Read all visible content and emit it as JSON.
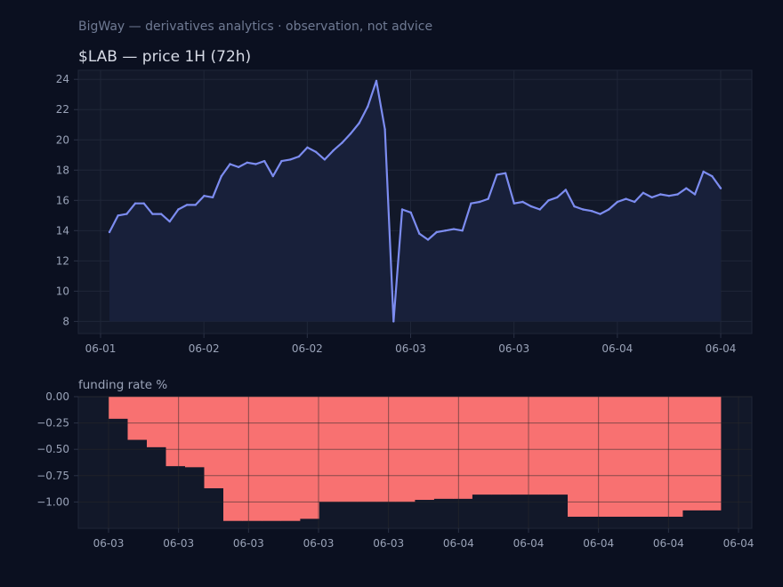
{
  "header": {
    "subtitle": "BigWay — derivatives analytics · observation, not advice"
  },
  "colors": {
    "page_background": "#0b1020",
    "plot_background": "#121829",
    "price_line": "#7c8cf0",
    "price_fill": "#18203a",
    "funding_bar": "#f87171",
    "grid": "#1f2638",
    "text": "#9aa3b8"
  },
  "chart_data": [
    {
      "type": "area",
      "title": "$LAB — price 1H (72h)",
      "xlabel": "",
      "ylabel": "",
      "ylim": [
        7.2,
        24.6
      ],
      "yticks": [
        8,
        10,
        12,
        14,
        16,
        18,
        20,
        22,
        24
      ],
      "xticks": [
        "06-01",
        "06-02",
        "06-02",
        "06-03",
        "06-03",
        "06-04",
        "06-04"
      ],
      "grid": true,
      "series": [
        {
          "values": [
            13.9,
            15.0,
            15.1,
            15.8,
            15.8,
            15.1,
            15.1,
            14.6,
            15.4,
            15.7,
            15.7,
            16.3,
            16.2,
            17.6,
            18.4,
            18.2,
            18.5,
            18.4,
            18.6,
            17.6,
            18.6,
            18.7,
            18.9,
            19.5,
            19.2,
            18.7,
            19.3,
            19.8,
            20.4,
            21.1,
            22.2,
            23.9,
            20.7,
            8.0,
            15.4,
            15.2,
            13.8,
            13.4,
            13.9,
            14.0,
            14.1,
            14.0,
            15.8,
            15.9,
            16.1,
            17.7,
            17.8,
            15.8,
            15.9,
            15.6,
            15.4,
            16.0,
            16.2,
            16.7,
            15.6,
            15.4,
            15.3,
            15.1,
            15.4,
            15.9,
            16.1,
            15.9,
            16.5,
            16.2,
            16.4,
            16.3,
            16.4,
            16.8,
            16.4,
            17.9,
            17.6,
            16.8
          ]
        }
      ]
    },
    {
      "type": "bar",
      "title": "funding rate %",
      "xlabel": "",
      "ylabel": "",
      "ylim": [
        -1.25,
        0.0
      ],
      "yticks": [
        "0.00",
        "−0.25",
        "−0.50",
        "−0.75",
        "−1.00"
      ],
      "xticks": [
        "06-03",
        "06-03",
        "06-03",
        "06-03",
        "06-03",
        "06-04",
        "06-04",
        "06-04",
        "06-04",
        "06-04"
      ],
      "grid": true,
      "series": [
        {
          "values": [
            -0.21,
            -0.41,
            -0.48,
            -0.66,
            -0.67,
            -0.87,
            -1.18,
            -1.18,
            -1.18,
            -1.18,
            -1.16,
            -1.0,
            -1.0,
            -1.0,
            -1.0,
            -1.0,
            -0.98,
            -0.97,
            -0.97,
            -0.93,
            -0.93,
            -0.93,
            -0.93,
            -0.93,
            -1.14,
            -1.14,
            -1.14,
            -1.14,
            -1.14,
            -1.14,
            -1.08,
            -1.08
          ]
        }
      ]
    }
  ]
}
